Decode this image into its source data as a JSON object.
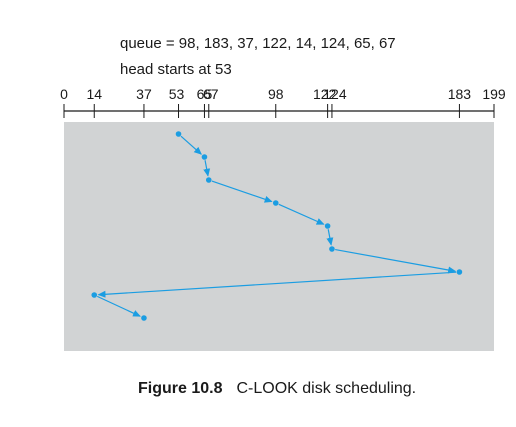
{
  "header": {
    "queue_line": "queue = 98, 183, 37, 122, 14, 124, 65, 67",
    "head_line": "head starts at 53"
  },
  "caption": {
    "label": "Figure 10.8",
    "text": "C-LOOK disk scheduling."
  },
  "axis": {
    "min": 0,
    "max": 199,
    "ticks": [
      0,
      14,
      37,
      53,
      65,
      67,
      98,
      122,
      124,
      183,
      199
    ],
    "tick_labels": [
      "0",
      "14",
      "37",
      "53",
      "65",
      "67",
      "98",
      "122",
      "124",
      "183",
      "199"
    ]
  },
  "path": {
    "sequence": [
      53,
      65,
      67,
      98,
      122,
      124,
      183,
      14,
      37
    ]
  },
  "colors": {
    "panel": "#d1d3d4",
    "line": "#1b9de2",
    "axis": "#1a1a1a",
    "text": "#1a1a1a"
  }
}
